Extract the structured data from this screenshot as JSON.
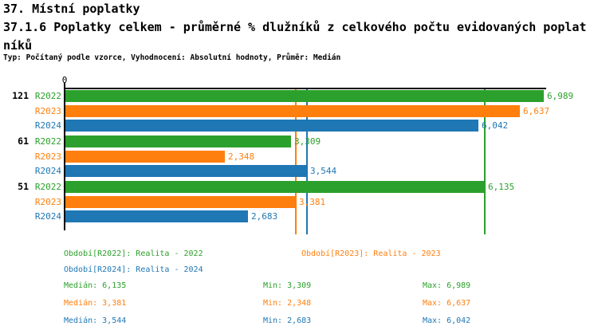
{
  "header": {
    "title": "37. Místní poplatky",
    "subtitle_line1": "37.1.6 Poplatky celkem - průměrné % dlužníků z celkového počtu evidovaných poplat",
    "subtitle_line2": "níků",
    "meta": "Typ: Počítaný podle vzorce, Vyhodnocení: Absolutní hodnoty, Průměr: Medián"
  },
  "colors": {
    "r2022_green": "#2ca02c",
    "r2023_orange": "#ff7f0e",
    "r2024_blue": "#1f77b4",
    "axis_black": "#000000"
  },
  "chart_data": {
    "type": "bar",
    "orientation": "horizontal",
    "title": "37.1.6 Poplatky celkem - průměrné % dlužníků z celkového počtu evidovaných poplatníků",
    "categories": [
      "121",
      "61",
      "51"
    ],
    "series": [
      {
        "name": "R2022",
        "color": "#2ca02c",
        "values": [
          6.989,
          3.309,
          6.135
        ],
        "labels": [
          "6,989",
          "3,309",
          "6,135"
        ]
      },
      {
        "name": "R2023",
        "color": "#ff7f0e",
        "values": [
          6.637,
          2.348,
          3.381
        ],
        "labels": [
          "6,637",
          "2,348",
          "3,381"
        ]
      },
      {
        "name": "R2024",
        "color": "#1f77b4",
        "values": [
          6.042,
          3.544,
          2.683
        ],
        "labels": [
          "6,042",
          "3,544",
          "2,683"
        ]
      }
    ],
    "median_lines": [
      {
        "name": "R2022",
        "value": 6.135,
        "color": "#2ca02c"
      },
      {
        "name": "R2023",
        "value": 3.381,
        "color": "#ff7f0e"
      },
      {
        "name": "R2024",
        "value": 3.544,
        "color": "#1f77b4"
      }
    ],
    "x_axis": {
      "min": 0,
      "max": 6.989,
      "zero_label": "0",
      "grid": false
    },
    "legend_position": "bottom"
  },
  "legend": {
    "items": [
      {
        "label": "Období[R2022]: Realita - 2022",
        "color": "#2ca02c"
      },
      {
        "label": "Období[R2023]: Realita - 2023",
        "color": "#ff7f0e"
      },
      {
        "label": "Období[R2024]: Realita - 2024",
        "color": "#1f77b4"
      }
    ]
  },
  "stats": {
    "rows": [
      {
        "median": "Medián: 6,135",
        "min": "Min: 3,309",
        "max": "Max: 6,989",
        "color": "#2ca02c"
      },
      {
        "median": "Medián: 3,381",
        "min": "Min: 2,348",
        "max": "Max: 6,637",
        "color": "#ff7f0e"
      },
      {
        "median": "Medián: 3,544",
        "min": "Min: 2,683",
        "max": "Max: 6,042",
        "color": "#1f77b4"
      }
    ]
  }
}
